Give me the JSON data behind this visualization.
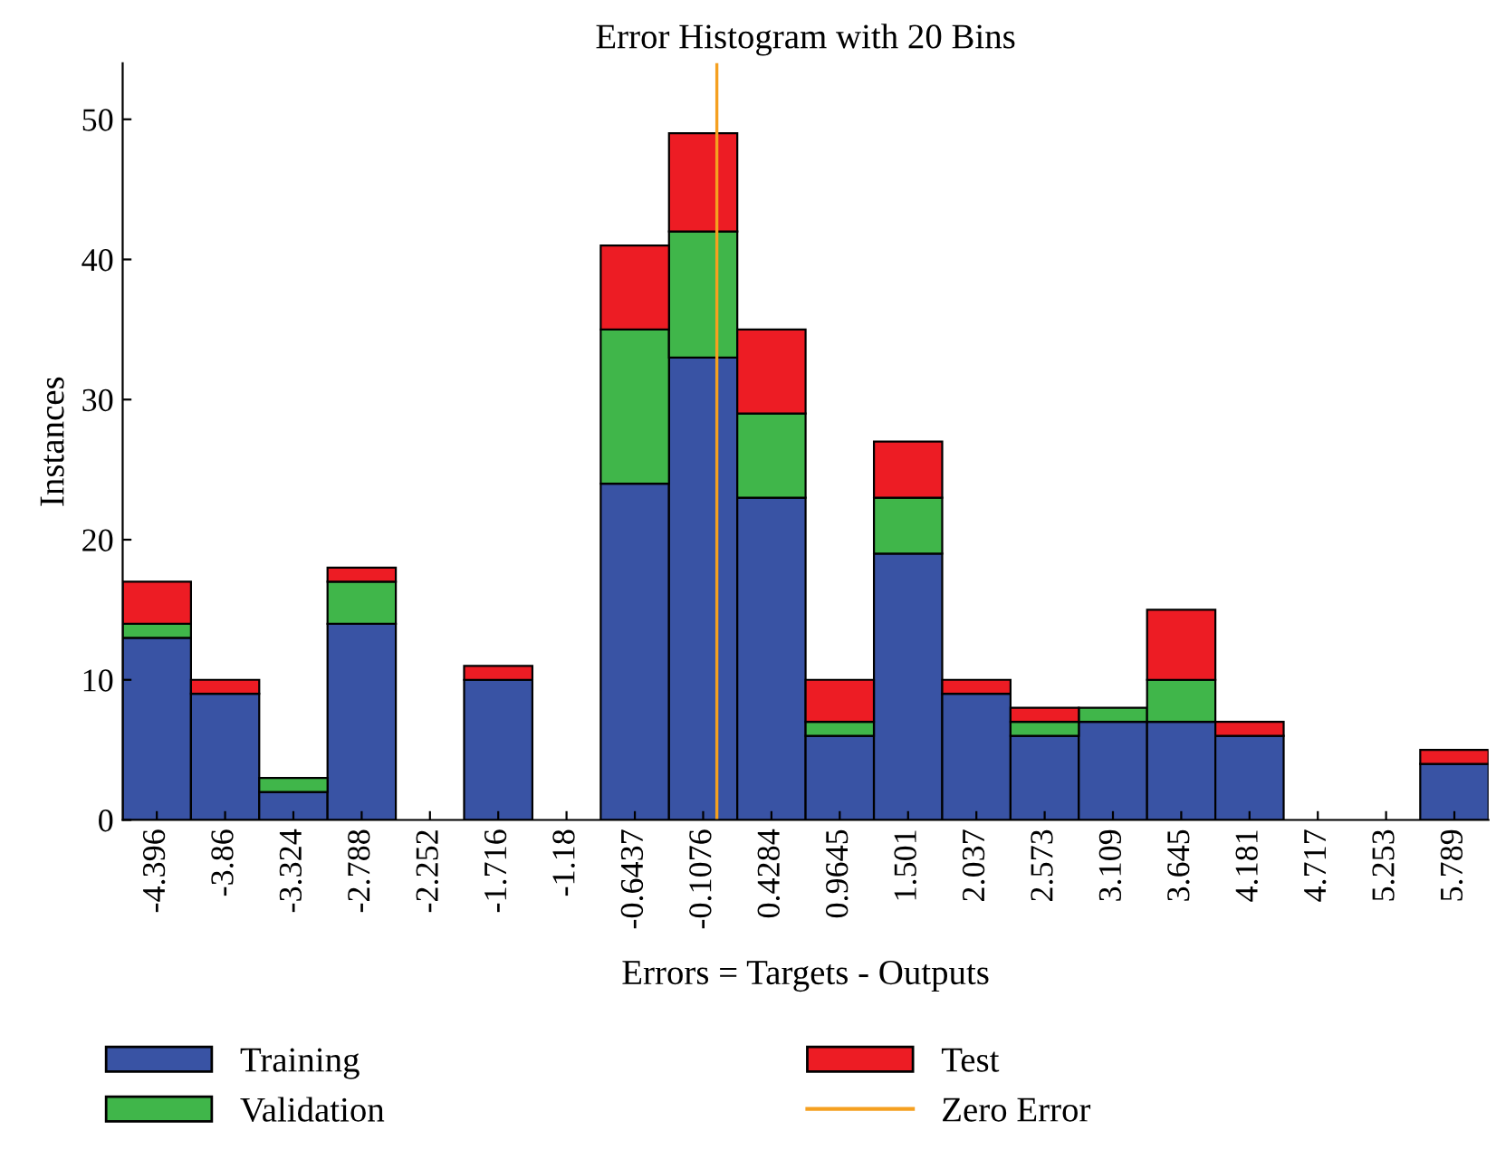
{
  "chart_data": {
    "type": "bar",
    "stacked": true,
    "title": "Error Histogram with 20 Bins",
    "xlabel": "Errors = Targets - Outputs",
    "ylabel": "Instances",
    "x": [
      -4.396,
      -3.86,
      -3.324,
      -2.788,
      -2.252,
      -1.716,
      -1.18,
      -0.6437,
      -0.1076,
      0.4284,
      0.9645,
      1.501,
      2.037,
      2.573,
      3.109,
      3.645,
      4.181,
      4.717,
      5.253,
      5.789
    ],
    "series": [
      {
        "name": "Training",
        "color": "#3953a4",
        "values": [
          13,
          9,
          2,
          14,
          0,
          10,
          0,
          24,
          33,
          23,
          6,
          19,
          9,
          6,
          7,
          7,
          6,
          0,
          0,
          4
        ]
      },
      {
        "name": "Validation",
        "color": "#40b64a",
        "values": [
          1,
          0,
          1,
          3,
          0,
          0,
          0,
          11,
          9,
          6,
          1,
          4,
          0,
          1,
          1,
          3,
          0,
          0,
          0,
          0
        ]
      },
      {
        "name": "Test",
        "color": "#ed1c24",
        "values": [
          3,
          1,
          0,
          1,
          0,
          1,
          0,
          6,
          7,
          6,
          3,
          4,
          1,
          1,
          0,
          5,
          1,
          0,
          0,
          1
        ]
      }
    ],
    "ref_lines": [
      {
        "axis": "x",
        "value": 0,
        "label": "Zero Error",
        "color": "#f5a020"
      }
    ],
    "xlim": [
      -4.664,
      6.057
    ],
    "ylim": [
      0,
      54
    ],
    "xticks": [
      -4.396,
      -3.86,
      -3.324,
      -2.788,
      -2.252,
      -1.716,
      -1.18,
      -0.6437,
      -0.1076,
      0.4284,
      0.9645,
      1.501,
      2.037,
      2.573,
      3.109,
      3.645,
      4.181,
      4.717,
      5.253,
      5.789
    ],
    "yticks": [
      0,
      10,
      20,
      30,
      40,
      50
    ],
    "grid": false,
    "legend": "bottom"
  }
}
